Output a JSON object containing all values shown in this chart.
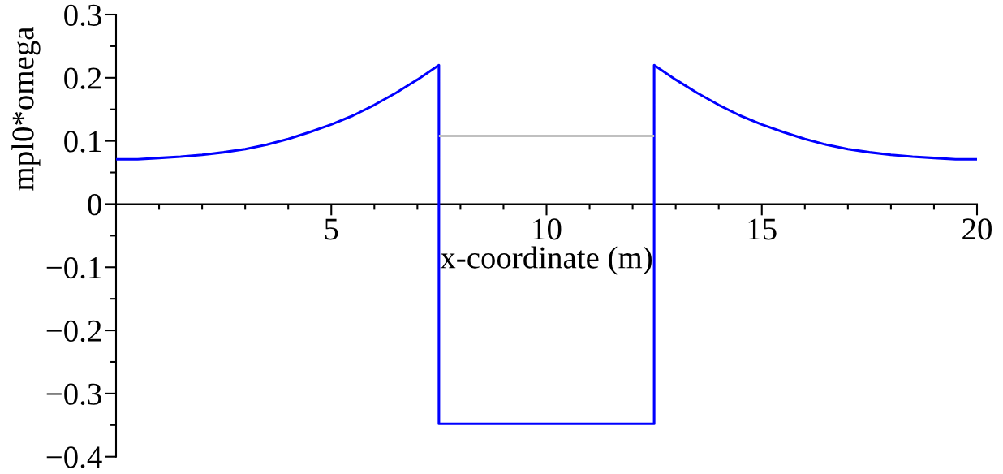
{
  "chart_data": {
    "type": "line",
    "xlabel": "x-coordinate (m)",
    "ylabel": "mpl0*omega",
    "line_style": "solid",
    "xlim": [
      0,
      20
    ],
    "ylim": [
      -0.4,
      0.3
    ],
    "xticks": [
      {
        "value": 1,
        "label": null
      },
      {
        "value": 2,
        "label": null
      },
      {
        "value": 3,
        "label": null
      },
      {
        "value": 4,
        "label": null
      },
      5,
      {
        "value": 6,
        "label": null
      },
      {
        "value": 7,
        "label": null
      },
      {
        "value": 8,
        "label": null
      },
      {
        "value": 9,
        "label": null
      },
      10,
      {
        "value": 11,
        "label": null
      },
      {
        "value": 12,
        "label": null
      },
      {
        "value": 13,
        "label": null
      },
      {
        "value": 14,
        "label": null
      },
      15,
      {
        "value": 16,
        "label": null
      },
      {
        "value": 17,
        "label": null
      },
      {
        "value": 18,
        "label": null
      },
      {
        "value": 19,
        "label": null
      },
      20
    ],
    "yticks": [
      {
        "value": -0.4,
        "label": "−0.4"
      },
      {
        "value": -0.35,
        "label": null
      },
      {
        "value": -0.3,
        "label": "−0.3"
      },
      {
        "value": -0.25,
        "label": null
      },
      {
        "value": -0.2,
        "label": "−0.2"
      },
      {
        "value": -0.15,
        "label": null
      },
      {
        "value": -0.1,
        "label": "−0.1"
      },
      {
        "value": -0.05,
        "label": null
      },
      0,
      {
        "value": 0.05,
        "label": null
      },
      0.1,
      {
        "value": 0.15,
        "label": null
      },
      0.2,
      {
        "value": 0.25,
        "label": null
      },
      0.3
    ],
    "series": [
      {
        "color": "#0000ff",
        "x": [
          0,
          0.5,
          1,
          1.5,
          2,
          2.5,
          3,
          3.5,
          4,
          4.5,
          5,
          5.5,
          6,
          6.5,
          7,
          7.5,
          7.5,
          12.5,
          12.5,
          13,
          13.5,
          14,
          14.5,
          15,
          15.5,
          16,
          16.5,
          17,
          17.5,
          18,
          18.5,
          19,
          19.5,
          20
        ],
        "values": [
          0.071,
          0.071,
          0.073,
          0.075,
          0.078,
          0.082,
          0.087,
          0.094,
          0.103,
          0.114,
          0.126,
          0.14,
          0.157,
          0.176,
          0.197,
          0.22,
          -0.348,
          -0.348,
          0.22,
          0.197,
          0.176,
          0.157,
          0.14,
          0.126,
          0.114,
          0.103,
          0.094,
          0.087,
          0.082,
          0.078,
          0.075,
          0.073,
          0.071,
          0.071
        ]
      },
      {
        "color": "#c0c0c0",
        "x": [
          7.5,
          12.5
        ],
        "values": [
          0.108,
          0.108
        ]
      }
    ]
  }
}
